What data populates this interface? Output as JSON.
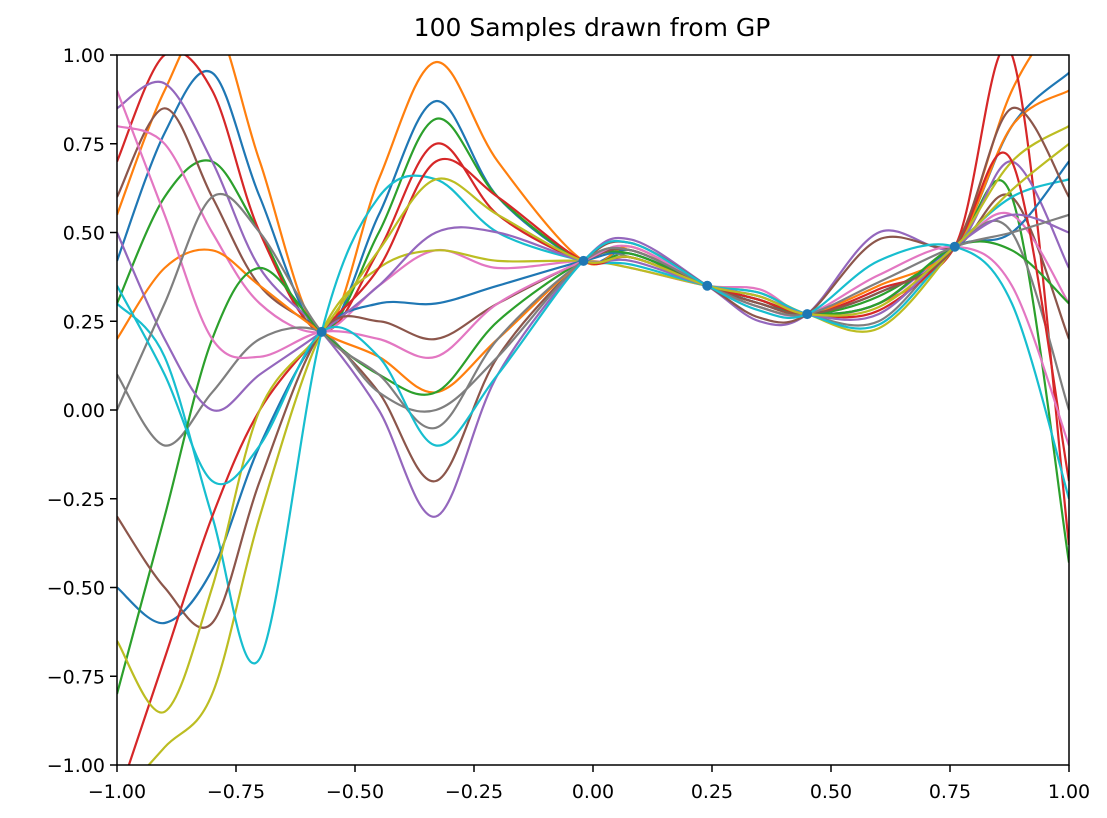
{
  "chart_data": {
    "type": "line",
    "title": "100 Samples drawn from GP",
    "xlabel": "",
    "ylabel": "",
    "xlim": [
      -1.0,
      1.0
    ],
    "ylim": [
      -1.0,
      1.0
    ],
    "xticks": [
      -1.0,
      -0.75,
      -0.5,
      -0.25,
      0.0,
      0.25,
      0.5,
      0.75,
      1.0
    ],
    "xtick_labels": [
      "−1.00",
      "−0.75",
      "−0.50",
      "−0.25",
      "0.00",
      "0.25",
      "0.50",
      "0.75",
      "1.00"
    ],
    "yticks": [
      -1.0,
      -0.75,
      -0.5,
      -0.25,
      0.0,
      0.25,
      0.5,
      0.75,
      1.0
    ],
    "ytick_labels": [
      "−1.00",
      "−0.75",
      "−0.50",
      "−0.25",
      "0.00",
      "0.25",
      "0.50",
      "0.75",
      "1.00"
    ],
    "grid": false,
    "legend": "none",
    "observed_points": [
      {
        "x": -0.57,
        "y": 0.22
      },
      {
        "x": -0.02,
        "y": 0.42
      },
      {
        "x": 0.24,
        "y": 0.35
      },
      {
        "x": 0.45,
        "y": 0.27
      },
      {
        "x": 0.76,
        "y": 0.46
      }
    ],
    "sample_x": [
      -1.0,
      -0.9,
      -0.8,
      -0.7,
      -0.57,
      -0.45,
      -0.33,
      -0.2,
      -0.02,
      0.08,
      0.24,
      0.35,
      0.45,
      0.6,
      0.76,
      0.88,
      1.0
    ],
    "palette": [
      "#1f77b4",
      "#ff7f0e",
      "#2ca02c",
      "#d62728",
      "#9467bd",
      "#8c564b",
      "#e377c2",
      "#7f7f7f",
      "#bcbd22",
      "#17becf"
    ],
    "series": [
      {
        "values": [
          0.42,
          0.78,
          0.95,
          0.6,
          0.22,
          0.55,
          0.87,
          0.6,
          0.42,
          0.45,
          0.35,
          0.3,
          0.27,
          0.33,
          0.46,
          0.8,
          0.95
        ]
      },
      {
        "values": [
          0.55,
          0.9,
          1.1,
          0.7,
          0.22,
          0.65,
          0.98,
          0.7,
          0.42,
          0.46,
          0.35,
          0.3,
          0.27,
          0.3,
          0.46,
          0.9,
          1.15
        ]
      },
      {
        "values": [
          0.3,
          0.6,
          0.7,
          0.5,
          0.22,
          0.5,
          0.82,
          0.6,
          0.42,
          0.44,
          0.35,
          0.31,
          0.27,
          0.32,
          0.46,
          0.6,
          -0.43
        ]
      },
      {
        "values": [
          0.7,
          1.0,
          0.9,
          0.5,
          0.22,
          0.45,
          0.75,
          0.55,
          0.42,
          0.43,
          0.35,
          0.31,
          0.27,
          0.34,
          0.46,
          1.0,
          -0.38
        ]
      },
      {
        "values": [
          0.85,
          0.92,
          0.7,
          0.4,
          0.22,
          0.0,
          -0.3,
          0.1,
          0.42,
          0.48,
          0.35,
          0.25,
          0.27,
          0.5,
          0.46,
          0.7,
          0.4
        ]
      },
      {
        "values": [
          0.6,
          0.85,
          0.6,
          0.35,
          0.22,
          0.05,
          -0.2,
          0.15,
          0.42,
          0.47,
          0.35,
          0.26,
          0.27,
          0.48,
          0.46,
          0.6,
          0.2
        ]
      },
      {
        "values": [
          0.8,
          0.75,
          0.5,
          0.3,
          0.22,
          0.35,
          0.45,
          0.4,
          0.42,
          0.4,
          0.35,
          0.34,
          0.27,
          0.3,
          0.46,
          0.55,
          0.3
        ]
      },
      {
        "values": [
          0.1,
          -0.1,
          0.05,
          0.2,
          0.22,
          0.05,
          0.0,
          0.15,
          0.42,
          0.43,
          0.35,
          0.32,
          0.27,
          0.25,
          0.46,
          0.5,
          0.0
        ]
      },
      {
        "values": [
          -1.1,
          -0.95,
          -0.8,
          -0.3,
          0.22,
          0.4,
          0.45,
          0.42,
          0.42,
          0.4,
          0.35,
          0.33,
          0.27,
          0.23,
          0.46,
          0.7,
          0.8
        ]
      },
      {
        "values": [
          0.3,
          0.15,
          -0.3,
          -0.7,
          0.22,
          0.6,
          0.65,
          0.5,
          0.42,
          0.41,
          0.35,
          0.33,
          0.27,
          0.24,
          0.46,
          0.6,
          0.65
        ]
      },
      {
        "values": [
          -0.5,
          -0.6,
          -0.45,
          -0.1,
          0.22,
          0.3,
          0.3,
          0.35,
          0.42,
          0.44,
          0.35,
          0.3,
          0.27,
          0.3,
          0.46,
          0.5,
          0.7
        ]
      },
      {
        "values": [
          0.2,
          0.4,
          0.45,
          0.35,
          0.22,
          0.15,
          0.05,
          0.2,
          0.42,
          0.45,
          0.35,
          0.29,
          0.27,
          0.35,
          0.46,
          0.8,
          0.9
        ]
      },
      {
        "values": [
          -0.8,
          -0.3,
          0.2,
          0.4,
          0.22,
          0.1,
          0.05,
          0.25,
          0.42,
          0.44,
          0.35,
          0.31,
          0.27,
          0.3,
          0.46,
          0.45,
          0.3
        ]
      },
      {
        "values": [
          -1.1,
          -0.7,
          -0.3,
          0.0,
          0.22,
          0.4,
          0.7,
          0.6,
          0.42,
          0.43,
          0.35,
          0.31,
          0.27,
          0.28,
          0.46,
          0.7,
          -0.2
        ]
      },
      {
        "values": [
          0.5,
          0.2,
          0.0,
          0.1,
          0.22,
          0.35,
          0.5,
          0.5,
          0.42,
          0.42,
          0.35,
          0.32,
          0.27,
          0.27,
          0.46,
          0.55,
          0.5
        ]
      },
      {
        "values": [
          -0.3,
          -0.5,
          -0.6,
          -0.2,
          0.22,
          0.25,
          0.2,
          0.3,
          0.42,
          0.45,
          0.35,
          0.3,
          0.27,
          0.33,
          0.46,
          0.85,
          0.6
        ]
      },
      {
        "values": [
          0.9,
          0.55,
          0.2,
          0.15,
          0.22,
          0.2,
          0.15,
          0.3,
          0.42,
          0.46,
          0.35,
          0.29,
          0.27,
          0.38,
          0.46,
          0.35,
          -0.1
        ]
      },
      {
        "values": [
          0.0,
          0.3,
          0.6,
          0.5,
          0.22,
          0.1,
          -0.05,
          0.2,
          0.42,
          0.45,
          0.35,
          0.29,
          0.27,
          0.36,
          0.46,
          0.5,
          0.55
        ]
      },
      {
        "values": [
          -0.65,
          -0.85,
          -0.5,
          0.0,
          0.22,
          0.45,
          0.65,
          0.55,
          0.42,
          0.43,
          0.35,
          0.32,
          0.27,
          0.29,
          0.46,
          0.62,
          0.75
        ]
      },
      {
        "values": [
          0.35,
          0.1,
          -0.2,
          -0.1,
          0.22,
          0.15,
          -0.1,
          0.1,
          0.42,
          0.47,
          0.35,
          0.28,
          0.27,
          0.42,
          0.46,
          0.3,
          -0.25
        ]
      }
    ]
  }
}
